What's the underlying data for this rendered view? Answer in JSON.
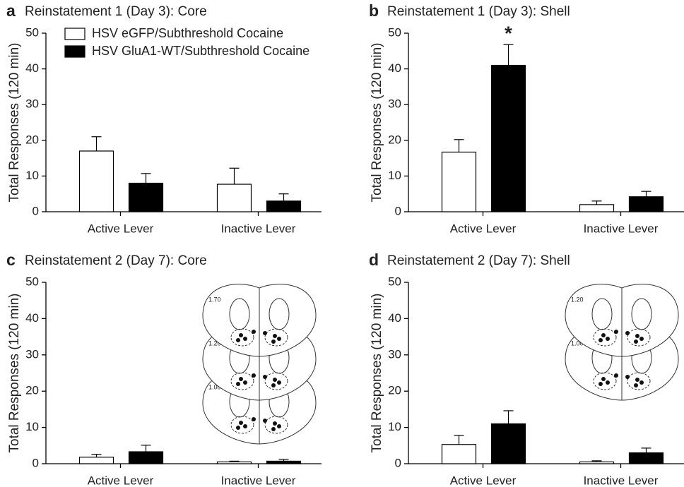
{
  "chart_data": [
    {
      "type": "bar",
      "panel": "a",
      "title": "Reinstatement 1 (Day 3): Core",
      "ylabel": "Total Responses (120 min)",
      "categories": [
        "Active Lever",
        "Inactive Lever"
      ],
      "series": [
        {
          "name": "HSV eGFP/Subthreshold Cocaine",
          "color": "#ffffff",
          "values": [
            17,
            7.7
          ],
          "errors": [
            4,
            4.5
          ]
        },
        {
          "name": "HSV GluA1-WT/Subthreshold Cocaine",
          "color": "#000000",
          "values": [
            8,
            3
          ],
          "errors": [
            2.7,
            2
          ]
        }
      ],
      "ylim": [
        0,
        50
      ],
      "yticks": [
        0,
        10,
        20,
        30,
        40,
        50
      ],
      "legend": "upper left"
    },
    {
      "type": "bar",
      "panel": "b",
      "title": "Reinstatement 1 (Day 3): Shell",
      "ylabel": "Total Responses (120 min)",
      "categories": [
        "Active Lever",
        "Inactive Lever"
      ],
      "series": [
        {
          "color": "#ffffff",
          "values": [
            16.7,
            2
          ],
          "errors": [
            3.5,
            1
          ]
        },
        {
          "color": "#000000",
          "values": [
            41,
            4.2
          ],
          "errors": [
            5.8,
            1.5
          ],
          "value_annotations": [
            "*",
            null
          ]
        }
      ],
      "ylim": [
        0,
        50
      ],
      "yticks": [
        0,
        10,
        20,
        30,
        40,
        50
      ]
    },
    {
      "type": "bar",
      "panel": "c",
      "title": "Reinstatement 2 (Day 7): Core",
      "ylabel": "Total Responses (120 min)",
      "categories": [
        "Active Lever",
        "Inactive Lever"
      ],
      "series": [
        {
          "color": "#ffffff",
          "values": [
            1.8,
            0.5
          ],
          "errors": [
            0.8,
            0.2
          ]
        },
        {
          "color": "#000000",
          "values": [
            3.3,
            0.7
          ],
          "errors": [
            1.8,
            0.5
          ]
        }
      ],
      "ylim": [
        0,
        50
      ],
      "yticks": [
        0,
        10,
        20,
        30,
        40,
        50
      ],
      "inset_labels": [
        "1.70",
        "1.20",
        "1.00"
      ]
    },
    {
      "type": "bar",
      "panel": "d",
      "title": "Reinstatement 2 (Day 7): Shell",
      "ylabel": "Total Responses (120 min)",
      "categories": [
        "Active Lever",
        "Inactive Lever"
      ],
      "series": [
        {
          "color": "#ffffff",
          "values": [
            5.3,
            0.5
          ],
          "errors": [
            2.5,
            0.3
          ]
        },
        {
          "color": "#000000",
          "values": [
            11,
            3
          ],
          "errors": [
            3.6,
            1.3
          ]
        }
      ],
      "ylim": [
        0,
        50
      ],
      "yticks": [
        0,
        10,
        20,
        30,
        40,
        50
      ],
      "inset_labels": [
        "1.20",
        "1.00"
      ]
    }
  ]
}
